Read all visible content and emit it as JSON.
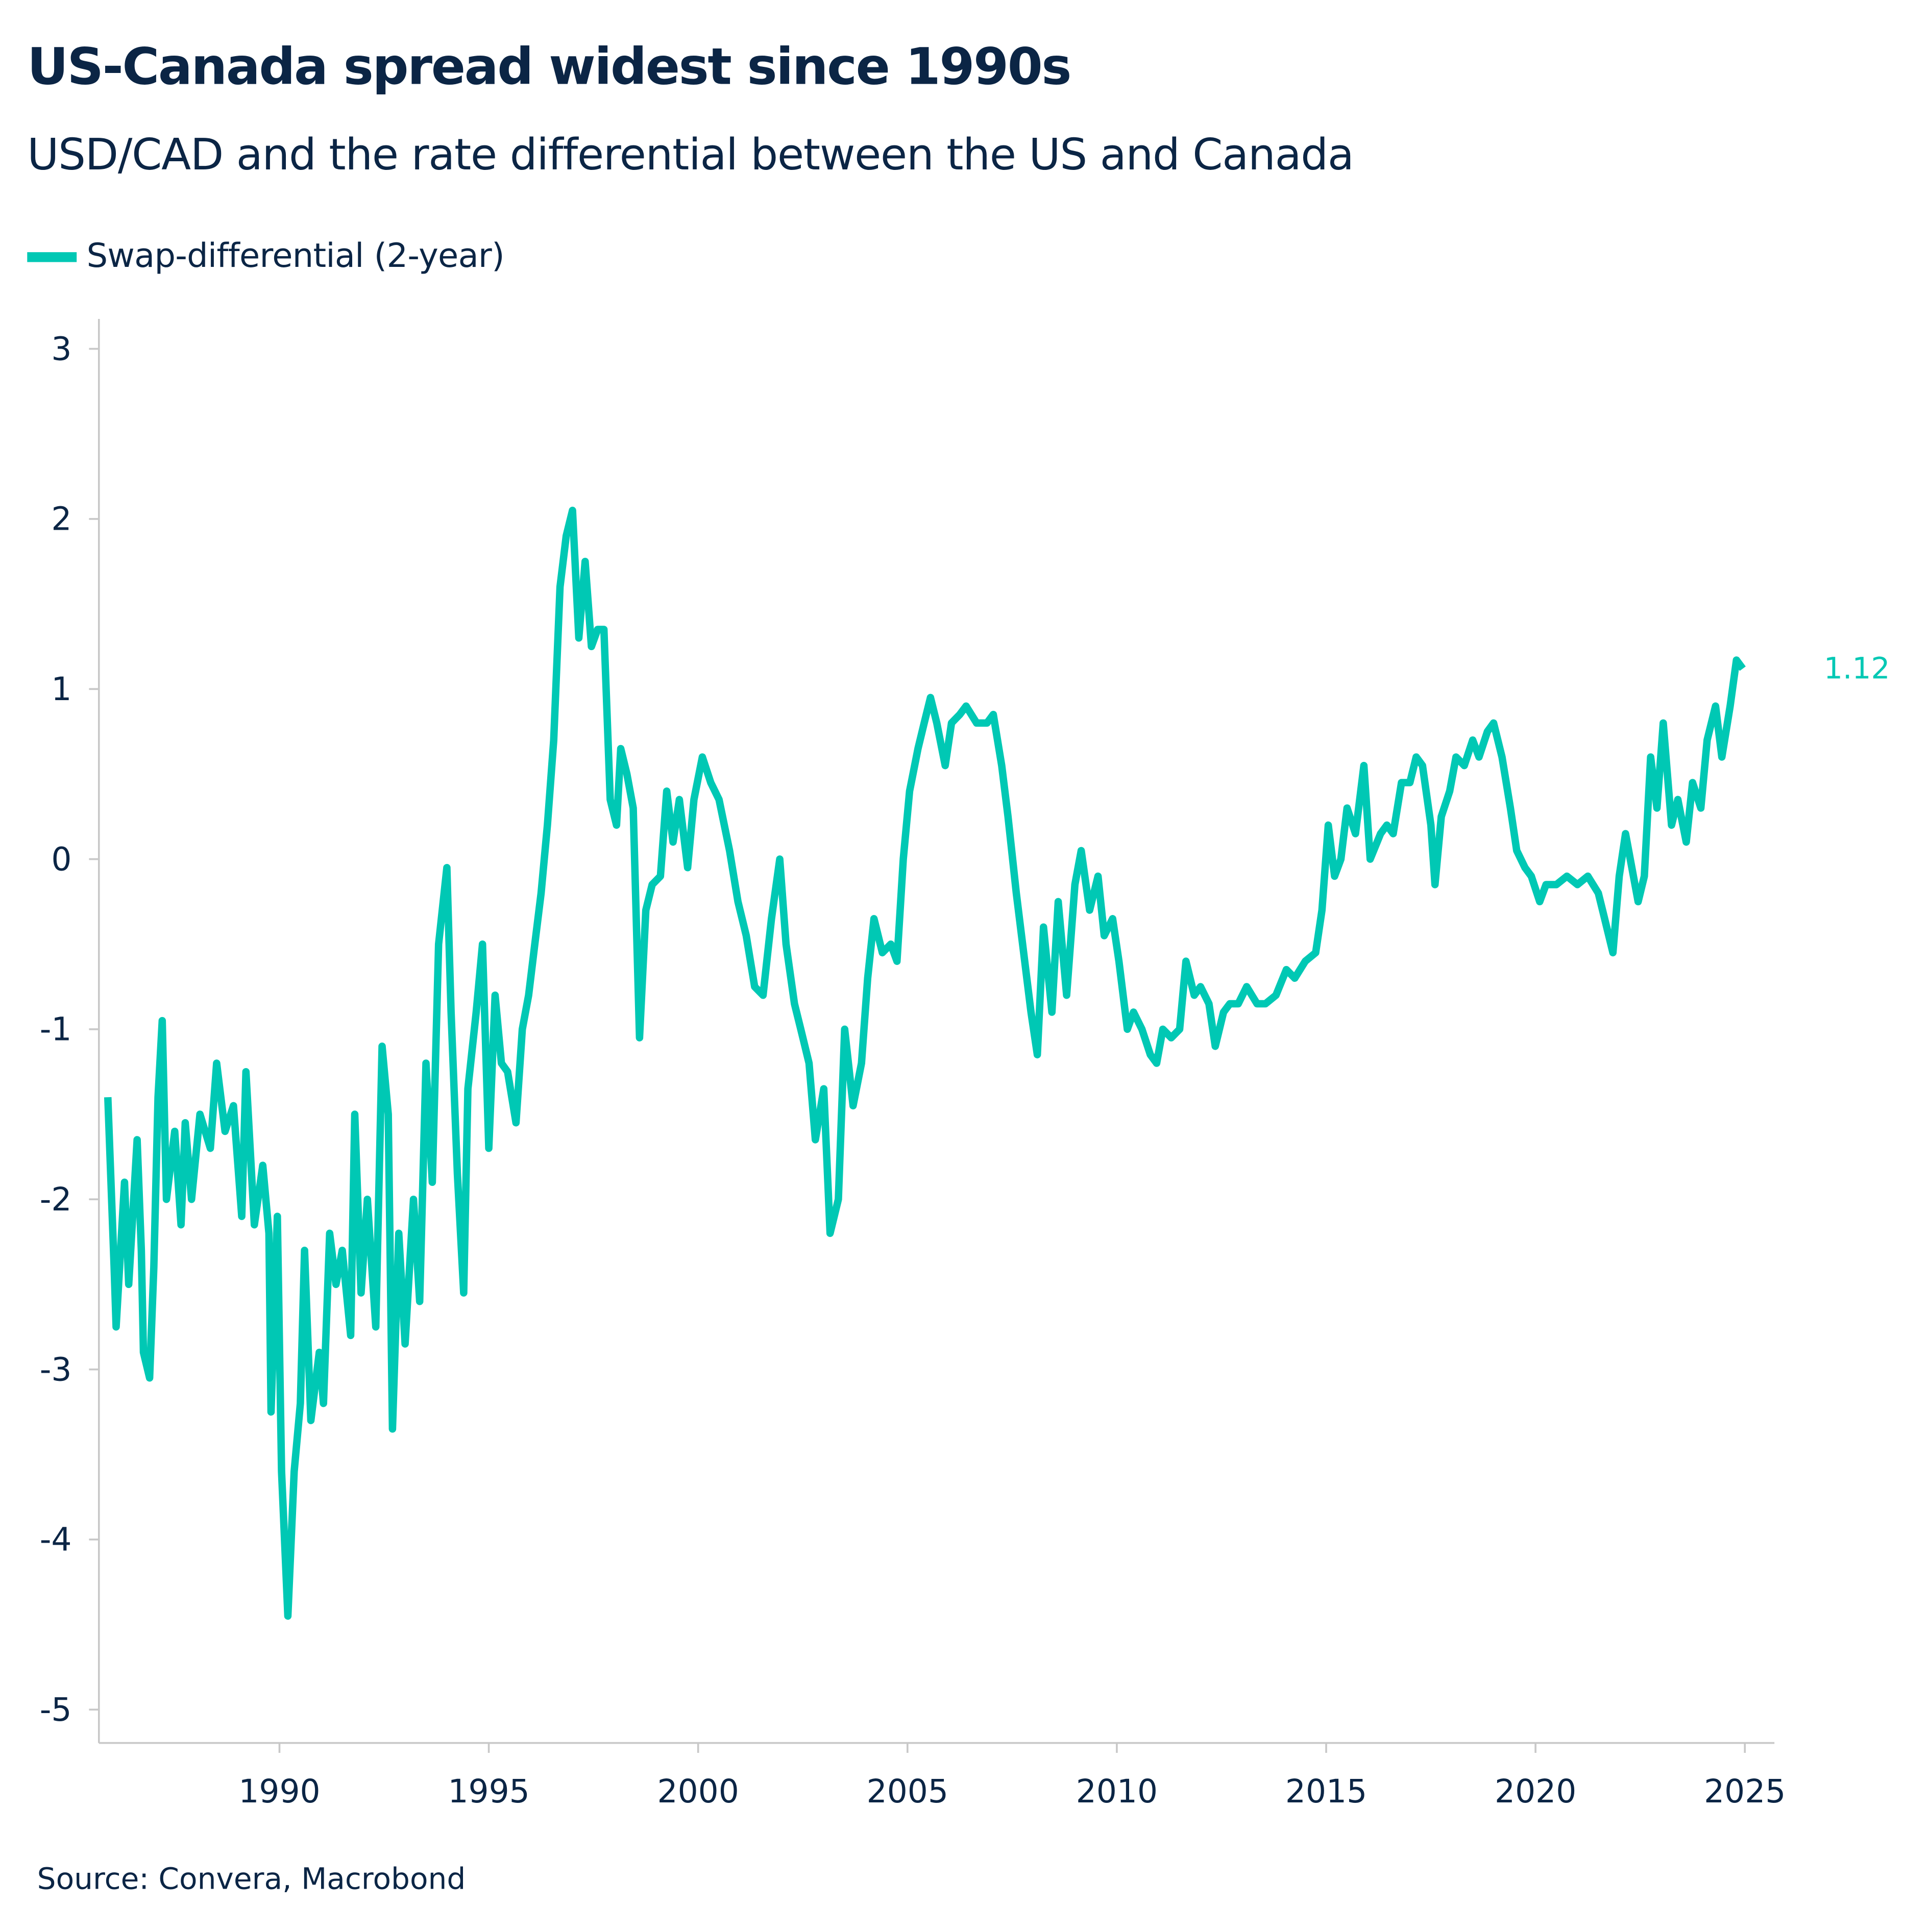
{
  "header": {
    "title": "US-Canada spread widest since 1990s",
    "subtitle": "USD/CAD and the rate differential between the US and Canada"
  },
  "footer": {
    "source": "Source: Convera, Macrobond"
  },
  "chart_data": {
    "type": "line",
    "title": "US-Canada spread widest since 1990s",
    "subtitle": "USD/CAD and the rate differential between the US and Canada",
    "xlabel": "",
    "ylabel": "",
    "xlim": [
      1985.8,
      2025.6
    ],
    "ylim": [
      -5.2,
      3.2
    ],
    "grid": false,
    "legend_placement": "top-left",
    "x_ticks": [
      "1990",
      "1995",
      "2000",
      "2005",
      "2010",
      "2015",
      "2020",
      "2025"
    ],
    "y_ticks": [
      "3",
      "2",
      "1",
      "0",
      "-1",
      "-2",
      "-3",
      "-4",
      "-5"
    ],
    "end_label": "1.12",
    "colors": {
      "series": "#00c8b4",
      "text": "#0b2545",
      "axis": "#c8c8c8"
    },
    "series": [
      {
        "name": "Swap-differential (2-year)",
        "points": [
          [
            1985.9,
            -1.4
          ],
          [
            1986.05,
            -2.4
          ],
          [
            1986.1,
            -2.75
          ],
          [
            1986.3,
            -1.9
          ],
          [
            1986.4,
            -2.5
          ],
          [
            1986.6,
            -1.65
          ],
          [
            1986.7,
            -2.3
          ],
          [
            1986.75,
            -2.9
          ],
          [
            1986.9,
            -3.05
          ],
          [
            1987.0,
            -2.4
          ],
          [
            1987.1,
            -1.4
          ],
          [
            1987.2,
            -0.95
          ],
          [
            1987.3,
            -2.0
          ],
          [
            1987.5,
            -1.6
          ],
          [
            1987.65,
            -2.15
          ],
          [
            1987.75,
            -1.55
          ],
          [
            1987.9,
            -2.0
          ],
          [
            1988.1,
            -1.5
          ],
          [
            1988.35,
            -1.7
          ],
          [
            1988.5,
            -1.2
          ],
          [
            1988.7,
            -1.6
          ],
          [
            1988.9,
            -1.45
          ],
          [
            1989.1,
            -2.1
          ],
          [
            1989.2,
            -1.25
          ],
          [
            1989.4,
            -2.15
          ],
          [
            1989.6,
            -1.8
          ],
          [
            1989.75,
            -2.2
          ],
          [
            1989.8,
            -3.25
          ],
          [
            1989.95,
            -2.1
          ],
          [
            1990.05,
            -3.6
          ],
          [
            1990.2,
            -4.45
          ],
          [
            1990.35,
            -3.6
          ],
          [
            1990.5,
            -3.2
          ],
          [
            1990.6,
            -2.3
          ],
          [
            1990.75,
            -3.3
          ],
          [
            1990.95,
            -2.9
          ],
          [
            1991.05,
            -3.2
          ],
          [
            1991.2,
            -2.2
          ],
          [
            1991.35,
            -2.5
          ],
          [
            1991.5,
            -2.3
          ],
          [
            1991.7,
            -2.8
          ],
          [
            1991.8,
            -1.5
          ],
          [
            1991.95,
            -2.55
          ],
          [
            1992.1,
            -2.0
          ],
          [
            1992.3,
            -2.75
          ],
          [
            1992.45,
            -1.1
          ],
          [
            1992.6,
            -1.5
          ],
          [
            1992.7,
            -3.35
          ],
          [
            1992.85,
            -2.2
          ],
          [
            1993.0,
            -2.85
          ],
          [
            1993.2,
            -2.0
          ],
          [
            1993.35,
            -2.6
          ],
          [
            1993.5,
            -1.2
          ],
          [
            1993.65,
            -1.9
          ],
          [
            1993.8,
            -0.5
          ],
          [
            1994.0,
            -0.05
          ],
          [
            1994.1,
            -0.9
          ],
          [
            1994.25,
            -1.85
          ],
          [
            1994.4,
            -2.55
          ],
          [
            1994.5,
            -1.35
          ],
          [
            1994.7,
            -0.9
          ],
          [
            1994.85,
            -0.5
          ],
          [
            1995.0,
            -1.7
          ],
          [
            1995.15,
            -0.8
          ],
          [
            1995.3,
            -1.2
          ],
          [
            1995.45,
            -1.25
          ],
          [
            1995.65,
            -1.55
          ],
          [
            1995.8,
            -1.0
          ],
          [
            1995.95,
            -0.8
          ],
          [
            1996.1,
            -0.5
          ],
          [
            1996.25,
            -0.2
          ],
          [
            1996.4,
            0.2
          ],
          [
            1996.55,
            0.7
          ],
          [
            1996.7,
            1.6
          ],
          [
            1996.85,
            1.9
          ],
          [
            1997.0,
            2.05
          ],
          [
            1997.15,
            1.3
          ],
          [
            1997.3,
            1.75
          ],
          [
            1997.45,
            1.25
          ],
          [
            1997.6,
            1.35
          ],
          [
            1997.75,
            1.35
          ],
          [
            1997.9,
            0.35
          ],
          [
            1998.05,
            0.2
          ],
          [
            1998.15,
            0.65
          ],
          [
            1998.3,
            0.5
          ],
          [
            1998.45,
            0.3
          ],
          [
            1998.6,
            -1.05
          ],
          [
            1998.75,
            -0.3
          ],
          [
            1998.9,
            -0.15
          ],
          [
            1999.1,
            -0.1
          ],
          [
            1999.25,
            0.4
          ],
          [
            1999.4,
            0.1
          ],
          [
            1999.55,
            0.35
          ],
          [
            1999.75,
            -0.05
          ],
          [
            1999.9,
            0.35
          ],
          [
            2000.1,
            0.6
          ],
          [
            2000.3,
            0.45
          ],
          [
            2000.5,
            0.35
          ],
          [
            2000.75,
            0.05
          ],
          [
            2000.95,
            -0.25
          ],
          [
            2001.15,
            -0.45
          ],
          [
            2001.35,
            -0.75
          ],
          [
            2001.55,
            -0.8
          ],
          [
            2001.75,
            -0.35
          ],
          [
            2001.95,
            0.0
          ],
          [
            2002.1,
            -0.5
          ],
          [
            2002.3,
            -0.85
          ],
          [
            2002.45,
            -1.0
          ],
          [
            2002.65,
            -1.2
          ],
          [
            2002.8,
            -1.65
          ],
          [
            2003.0,
            -1.35
          ],
          [
            2003.15,
            -2.2
          ],
          [
            2003.35,
            -2.0
          ],
          [
            2003.5,
            -1.0
          ],
          [
            2003.7,
            -1.45
          ],
          [
            2003.9,
            -1.2
          ],
          [
            2004.05,
            -0.7
          ],
          [
            2004.2,
            -0.35
          ],
          [
            2004.4,
            -0.55
          ],
          [
            2004.6,
            -0.5
          ],
          [
            2004.75,
            -0.6
          ],
          [
            2004.9,
            0.0
          ],
          [
            2005.05,
            0.4
          ],
          [
            2005.25,
            0.65
          ],
          [
            2005.4,
            0.8
          ],
          [
            2005.55,
            0.95
          ],
          [
            2005.7,
            0.8
          ],
          [
            2005.9,
            0.55
          ],
          [
            2006.05,
            0.8
          ],
          [
            2006.25,
            0.85
          ],
          [
            2006.4,
            0.9
          ],
          [
            2006.65,
            0.8
          ],
          [
            2006.9,
            0.8
          ],
          [
            2007.05,
            0.85
          ],
          [
            2007.25,
            0.55
          ],
          [
            2007.4,
            0.25
          ],
          [
            2007.6,
            -0.2
          ],
          [
            2007.8,
            -0.6
          ],
          [
            2007.95,
            -0.9
          ],
          [
            2008.1,
            -1.15
          ],
          [
            2008.25,
            -0.4
          ],
          [
            2008.45,
            -0.9
          ],
          [
            2008.6,
            -0.25
          ],
          [
            2008.8,
            -0.8
          ],
          [
            2009.0,
            -0.15
          ],
          [
            2009.15,
            0.05
          ],
          [
            2009.35,
            -0.3
          ],
          [
            2009.55,
            -0.1
          ],
          [
            2009.7,
            -0.45
          ],
          [
            2009.9,
            -0.35
          ],
          [
            2010.05,
            -0.6
          ],
          [
            2010.25,
            -1.0
          ],
          [
            2010.4,
            -0.9
          ],
          [
            2010.6,
            -1.0
          ],
          [
            2010.8,
            -1.15
          ],
          [
            2010.95,
            -1.2
          ],
          [
            2011.1,
            -1.0
          ],
          [
            2011.3,
            -1.05
          ],
          [
            2011.5,
            -1.0
          ],
          [
            2011.65,
            -0.6
          ],
          [
            2011.85,
            -0.8
          ],
          [
            2012.0,
            -0.75
          ],
          [
            2012.2,
            -0.85
          ],
          [
            2012.35,
            -1.1
          ],
          [
            2012.55,
            -0.9
          ],
          [
            2012.7,
            -0.85
          ],
          [
            2012.9,
            -0.85
          ],
          [
            2013.1,
            -0.75
          ],
          [
            2013.35,
            -0.85
          ],
          [
            2013.55,
            -0.85
          ],
          [
            2013.8,
            -0.8
          ],
          [
            2014.05,
            -0.65
          ],
          [
            2014.25,
            -0.7
          ],
          [
            2014.5,
            -0.6
          ],
          [
            2014.75,
            -0.55
          ],
          [
            2014.9,
            -0.3
          ],
          [
            2015.05,
            0.2
          ],
          [
            2015.2,
            -0.1
          ],
          [
            2015.35,
            0.0
          ],
          [
            2015.5,
            0.3
          ],
          [
            2015.7,
            0.15
          ],
          [
            2015.9,
            0.55
          ],
          [
            2016.05,
            0.0
          ],
          [
            2016.3,
            0.15
          ],
          [
            2016.45,
            0.2
          ],
          [
            2016.6,
            0.15
          ],
          [
            2016.8,
            0.45
          ],
          [
            2017.0,
            0.45
          ],
          [
            2017.15,
            0.6
          ],
          [
            2017.3,
            0.55
          ],
          [
            2017.5,
            0.2
          ],
          [
            2017.6,
            -0.15
          ],
          [
            2017.75,
            0.25
          ],
          [
            2017.95,
            0.4
          ],
          [
            2018.1,
            0.6
          ],
          [
            2018.3,
            0.55
          ],
          [
            2018.5,
            0.7
          ],
          [
            2018.65,
            0.6
          ],
          [
            2018.85,
            0.75
          ],
          [
            2019.0,
            0.8
          ],
          [
            2019.2,
            0.6
          ],
          [
            2019.4,
            0.3
          ],
          [
            2019.55,
            0.05
          ],
          [
            2019.75,
            -0.05
          ],
          [
            2019.9,
            -0.1
          ],
          [
            2020.1,
            -0.25
          ],
          [
            2020.25,
            -0.15
          ],
          [
            2020.5,
            -0.15
          ],
          [
            2020.75,
            -0.1
          ],
          [
            2021.0,
            -0.15
          ],
          [
            2021.25,
            -0.1
          ],
          [
            2021.5,
            -0.2
          ],
          [
            2021.65,
            -0.35
          ],
          [
            2021.85,
            -0.55
          ],
          [
            2022.0,
            -0.1
          ],
          [
            2022.15,
            0.15
          ],
          [
            2022.3,
            -0.05
          ],
          [
            2022.45,
            -0.25
          ],
          [
            2022.6,
            -0.1
          ],
          [
            2022.75,
            0.6
          ],
          [
            2022.9,
            0.3
          ],
          [
            2023.05,
            0.8
          ],
          [
            2023.25,
            0.2
          ],
          [
            2023.4,
            0.35
          ],
          [
            2023.6,
            0.1
          ],
          [
            2023.75,
            0.45
          ],
          [
            2023.95,
            0.3
          ],
          [
            2024.1,
            0.7
          ],
          [
            2024.3,
            0.9
          ],
          [
            2024.45,
            0.6
          ],
          [
            2024.65,
            0.9
          ],
          [
            2024.8,
            1.17
          ],
          [
            2024.95,
            1.12
          ]
        ]
      }
    ]
  }
}
